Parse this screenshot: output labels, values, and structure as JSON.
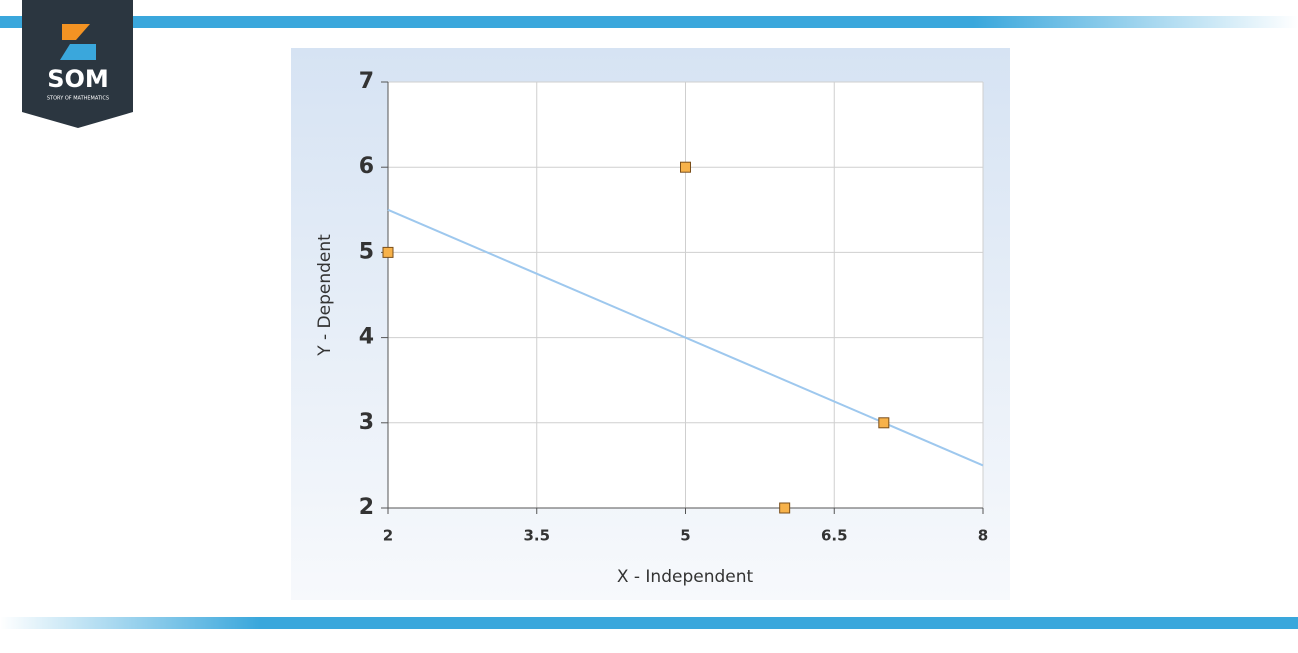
{
  "logo": {
    "title": "SOM",
    "subtitle": "STORY OF MATHEMATICS"
  },
  "chart_data": {
    "type": "scatter",
    "x_label": "X - Independent",
    "y_label": "Y - Dependent",
    "x": [
      2,
      5,
      6,
      7
    ],
    "values": [
      5,
      6,
      2,
      3
    ],
    "color": "#f7b24a",
    "trend_line": {
      "x": [
        2,
        8
      ],
      "values": [
        5.5,
        2.5
      ],
      "color": "#9ec8ee"
    },
    "xlim": [
      2,
      8
    ],
    "xticks": [
      2,
      3.5,
      5,
      6.5,
      8
    ],
    "ylim": [
      2,
      7
    ],
    "yticks": [
      2,
      3,
      4,
      5,
      6,
      7
    ],
    "grid": true
  }
}
